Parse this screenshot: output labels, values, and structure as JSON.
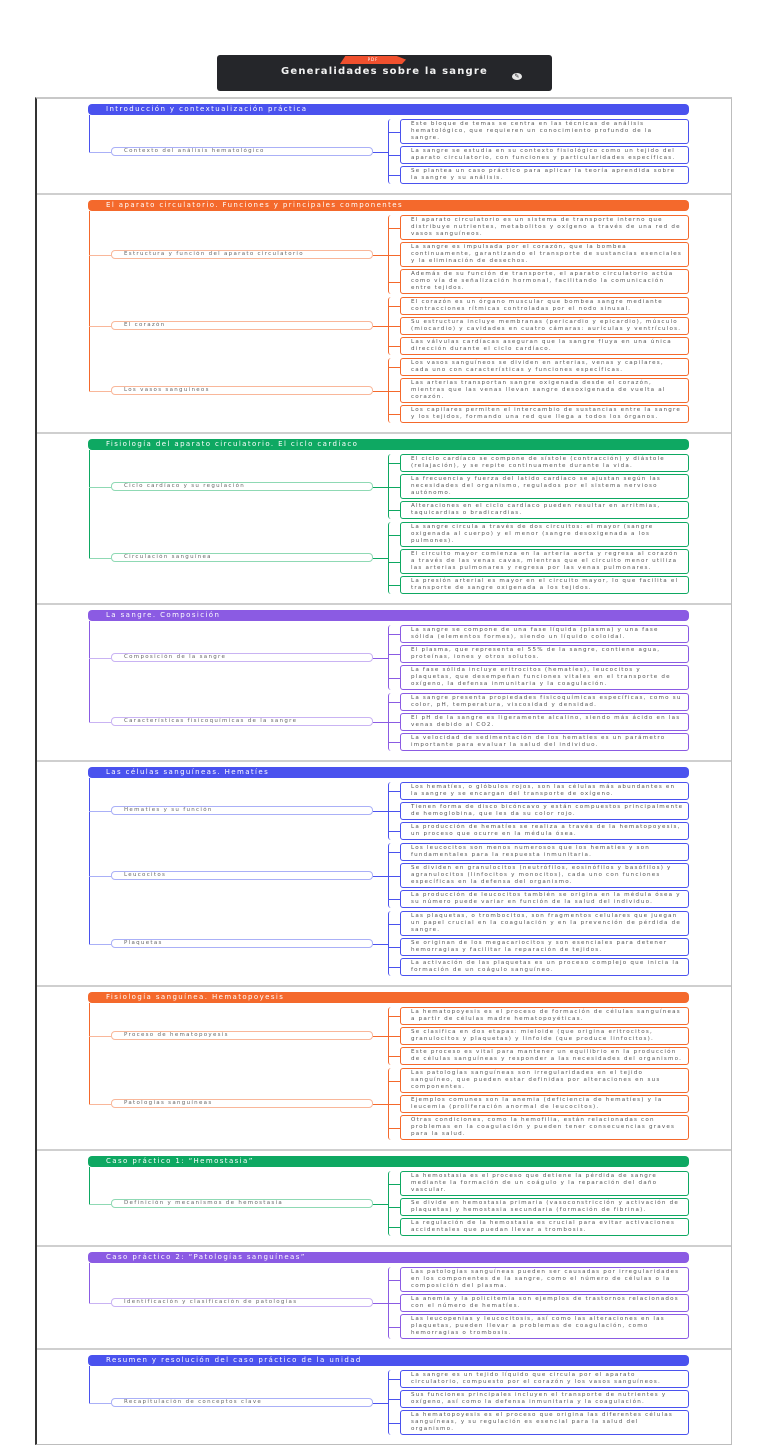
{
  "header": {
    "badge": "PDF",
    "title": "Generalidades sobre la sangre",
    "edit_icon": "pencil-icon"
  },
  "sections": [
    {
      "title": "Introducción y contextualización práctica",
      "color": "#4a52ee",
      "light": "#aab0f7",
      "groups": [
        {
          "label": "Contexto del análisis hematológico",
          "leaves": [
            "Este bloque de temas se centra en las técnicas de análisis hematológico, que requieren un conocimiento profundo de la sangre.",
            "La sangre se estudia en su contexto fisiológico como un tejido del aparato circulatorio, con funciones y particularidades específicas.",
            "Se plantea un caso práctico para aplicar la teoría aprendida sobre la sangre y su análisis."
          ]
        }
      ]
    },
    {
      "title": "El aparato circulatorio. Funciones y principales componentes",
      "color": "#f4692c",
      "light": "#f9b79a",
      "groups": [
        {
          "label": "Estructura y función del aparato circulatorio",
          "leaves": [
            "El aparato circulatorio es un sistema de transporte interno que distribuye nutrientes, metabolitos y oxígeno a través de una red de vasos sanguíneos.",
            "La sangre es impulsada por el corazón, que la bombea continuamente, garantizando el transporte de sustancias esenciales y la eliminación de desechos.",
            "Además de su función de transporte, el aparato circulatorio actúa como vía de señalización hormonal, facilitando la comunicación entre tejidos."
          ]
        },
        {
          "label": "El corazón",
          "leaves": [
            "El corazón es un órgano muscular que bombea sangre mediante contracciones rítmicas controladas por el nodo sinusal.",
            "Su estructura incluye membranas (pericardio y epicardio), músculo (miocardio) y cavidades en cuatro cámaras: aurículas y ventrículos.",
            "Las válvulas cardíacas aseguran que la sangre fluya en una única dirección durante el ciclo cardíaco."
          ]
        },
        {
          "label": "Los vasos sanguíneos",
          "leaves": [
            "Los vasos sanguíneos se dividen en arterias, venas y capilares, cada uno con características y funciones específicas.",
            "Las arterias transportan sangre oxigenada desde el corazón, mientras que las venas llevan sangre desoxigenada de vuelta al corazón.",
            "Los capilares permiten el intercambio de sustancias entre la sangre y los tejidos, formando una red que llega a todos los órganos."
          ]
        }
      ]
    },
    {
      "title": "Fisiología del aparato circulatorio. El ciclo cardíaco",
      "color": "#0ea862",
      "light": "#8fd9b4",
      "groups": [
        {
          "label": "Ciclo cardíaco y su regulación",
          "leaves": [
            "El ciclo cardíaco se compone de sístole (contracción) y diástole (relajación), y se repite continuamente durante la vida.",
            "La frecuencia y fuerza del latido cardíaco se ajustan según las necesidades del organismo, regulados por el sistema nervioso autónomo.",
            "Alteraciones en el ciclo cardíaco pueden resultar en arritmias, taquicardias o bradicardias."
          ]
        },
        {
          "label": "Circulación sanguínea",
          "leaves": [
            "La sangre circula a través de dos circuitos: el mayor (sangre oxigenada al cuerpo) y el menor (sangre desoxigenada a los pulmones).",
            "El circuito mayor comienza en la arteria aorta y regresa al corazón a través de las venas cavas, mientras que el circuito menor utiliza las arterias pulmonares y regresa por las venas pulmonares.",
            "La presión arterial es mayor en el circuito mayor, lo que facilita el transporte de sangre oxigenada a los tejidos."
          ]
        }
      ]
    },
    {
      "title": "La sangre. Composición",
      "color": "#8b5be3",
      "light": "#c9b3f3",
      "groups": [
        {
          "label": "Composición de la sangre",
          "leaves": [
            "La sangre se compone de una fase líquida (plasma) y una fase sólida (elementos formes), siendo un líquido coloidal.",
            "El plasma, que representa el 55% de la sangre, contiene agua, proteínas, iones y otros solutos.",
            "La fase sólida incluye eritrocitos (hematíes), leucocitos y plaquetas, que desempeñan funciones vitales en el transporte de oxígeno, la defensa inmunitaria y la coagulación."
          ]
        },
        {
          "label": "Características fisicoquímicas de la sangre",
          "leaves": [
            "La sangre presenta propiedades fisicoquímicas específicas, como su color, pH, temperatura, viscosidad y densidad.",
            "El pH de la sangre es ligeramente alcalino, siendo más ácido en las venas debido al CO2.",
            "La velocidad de sedimentación de los hematíes es un parámetro importante para evaluar la salud del individuo."
          ]
        }
      ]
    },
    {
      "title": "Las células sanguíneas. Hematíes",
      "color": "#4a52ee",
      "light": "#aab0f7",
      "groups": [
        {
          "label": "Hematíes y su función",
          "leaves": [
            "Los hematíes, o glóbulos rojos, son las células más abundantes en la sangre y se encargan del transporte de oxígeno.",
            "Tienen forma de disco bicóncavo y están compuestos principalmente de hemoglobina, que les da su color rojo.",
            "La producción de hematíes se realiza a través de la hematopoyesis, un proceso que ocurre en la médula ósea."
          ]
        },
        {
          "label": "Leucocitos",
          "leaves": [
            "Los leucocitos son menos numerosos que los hematíes y son fundamentales para la respuesta inmunitaria.",
            "Se dividen en granulocitos (neutrófilos, eosinófilos y basófilos) y agranulocitos (linfocitos y monocitos), cada uno con funciones específicas en la defensa del organismo.",
            "La producción de leucocitos también se origina en la médula ósea y su número puede variar en función de la salud del individuo."
          ]
        },
        {
          "label": "Plaquetas",
          "leaves": [
            "Las plaquetas, o trombocitos, son fragmentos celulares que juegan un papel crucial en la coagulación y en la prevención de pérdida de sangre.",
            "Se originan de los megacariocitos y son esenciales para detener hemorragias y facilitar la reparación de tejidos.",
            "La activación de las plaquetas es un proceso complejo que inicia la formación de un coágulo sanguíneo."
          ]
        }
      ]
    },
    {
      "title": "Fisiología sanguínea. Hematopoyesis",
      "color": "#f4692c",
      "light": "#f9b79a",
      "groups": [
        {
          "label": "Proceso de hematopoyesis",
          "leaves": [
            "La hematopoyesis es el proceso de formación de células sanguíneas a partir de células madre hematopoyéticas.",
            "Se clasifica en dos etapas: mieloide (que origina eritrocitos, granulocitos y plaquetas) y linfoide (que produce linfocitos).",
            "Este proceso es vital para mantener un equilibrio en la producción de células sanguíneas y responder a las necesidades del organismo."
          ]
        },
        {
          "label": "Patologías sanguíneas",
          "leaves": [
            "Las patologías sanguíneas son irregularidades en el tejido sanguíneo, que pueden estar definidas por alteraciones en sus componentes.",
            "Ejemplos comunes son la anemia (deficiencia de hematíes) y la leucemia (proliferación anormal de leucocitos).",
            "Otras condiciones, como la hemofilia, están relacionadas con problemas en la coagulación y pueden tener consecuencias graves para la salud."
          ]
        }
      ]
    },
    {
      "title": "Caso práctico 1: “Hemostasia”",
      "color": "#0ea862",
      "light": "#8fd9b4",
      "groups": [
        {
          "label": "Definición y mecanismos de hemostasia",
          "leaves": [
            "La hemostasia es el proceso que detiene la pérdida de sangre mediante la formación de un coágulo y la reparación del daño vascular.",
            "Se divide en hemostasia primaria (vasoconstricción y activación de plaquetas) y hemostasia secundaria (formación de fibrina).",
            "La regulación de la hemostasia es crucial para evitar activaciones accidentales que puedan llevar a trombosis."
          ]
        }
      ]
    },
    {
      "title": "Caso práctico 2: “Patologías sanguíneas”",
      "color": "#8b5be3",
      "light": "#c9b3f3",
      "groups": [
        {
          "label": "Identificación y clasificación de patologías",
          "leaves": [
            "Las patologías sanguíneas pueden ser causadas por irregularidades en los componentes de la sangre, como el número de células o la composición del plasma.",
            "La anemia y la policitemia son ejemplos de trastornos relacionados con el número de hematíes.",
            "Las leucopenias y leucocitosis, así como las alteraciones en las plaquetas, pueden llevar a problemas de coagulación, como hemorragias o trombosis."
          ]
        }
      ]
    },
    {
      "title": "Resumen y resolución del caso práctico de la unidad",
      "color": "#4a52ee",
      "light": "#aab0f7",
      "groups": [
        {
          "label": "Recapitulación de conceptos clave",
          "leaves": [
            "La sangre es un tejido líquido que circula por el aparato circulatorio, compuesto por el corazón y los vasos sanguíneos.",
            "Sus funciones principales incluyen el transporte de nutrientes y oxígeno, así como la defensa inmunitaria y la coagulación.",
            "La hematopoyesis es el proceso que origina las diferentes células sanguíneas, y su regulación es esencial para la salud del organismo."
          ]
        }
      ]
    }
  ]
}
